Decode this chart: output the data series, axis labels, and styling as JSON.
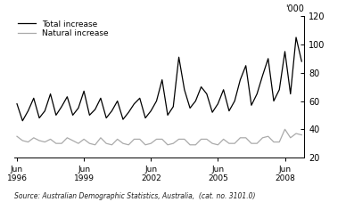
{
  "ylabel_right": "'000",
  "source_text": "Source: Australian Demographic Statistics, Australia,  (cat. no. 3101.0)",
  "legend_entries": [
    "Total increase",
    "Natural increase"
  ],
  "line_colors": [
    "#000000",
    "#aaaaaa"
  ],
  "ylim": [
    20,
    120
  ],
  "yticks": [
    20,
    40,
    60,
    80,
    100,
    120
  ],
  "background_color": "#ffffff",
  "line_width": 0.9,
  "total_increase": [
    58,
    46,
    53,
    62,
    48,
    53,
    65,
    50,
    56,
    63,
    50,
    55,
    67,
    50,
    54,
    62,
    48,
    53,
    60,
    47,
    52,
    58,
    62,
    48,
    53,
    60,
    75,
    50,
    56,
    91,
    68,
    55,
    60,
    70,
    65,
    52,
    58,
    68,
    53,
    60,
    75,
    85,
    57,
    65,
    78,
    90,
    60,
    68,
    95,
    65,
    105,
    88
  ],
  "natural_increase": [
    35,
    32,
    31,
    34,
    32,
    31,
    33,
    30,
    30,
    34,
    32,
    30,
    33,
    30,
    29,
    34,
    30,
    29,
    33,
    30,
    29,
    33,
    33,
    29,
    30,
    33,
    33,
    29,
    30,
    33,
    33,
    29,
    29,
    33,
    33,
    30,
    29,
    33,
    30,
    30,
    34,
    34,
    30,
    30,
    34,
    35,
    31,
    31,
    40,
    34,
    37,
    36
  ]
}
